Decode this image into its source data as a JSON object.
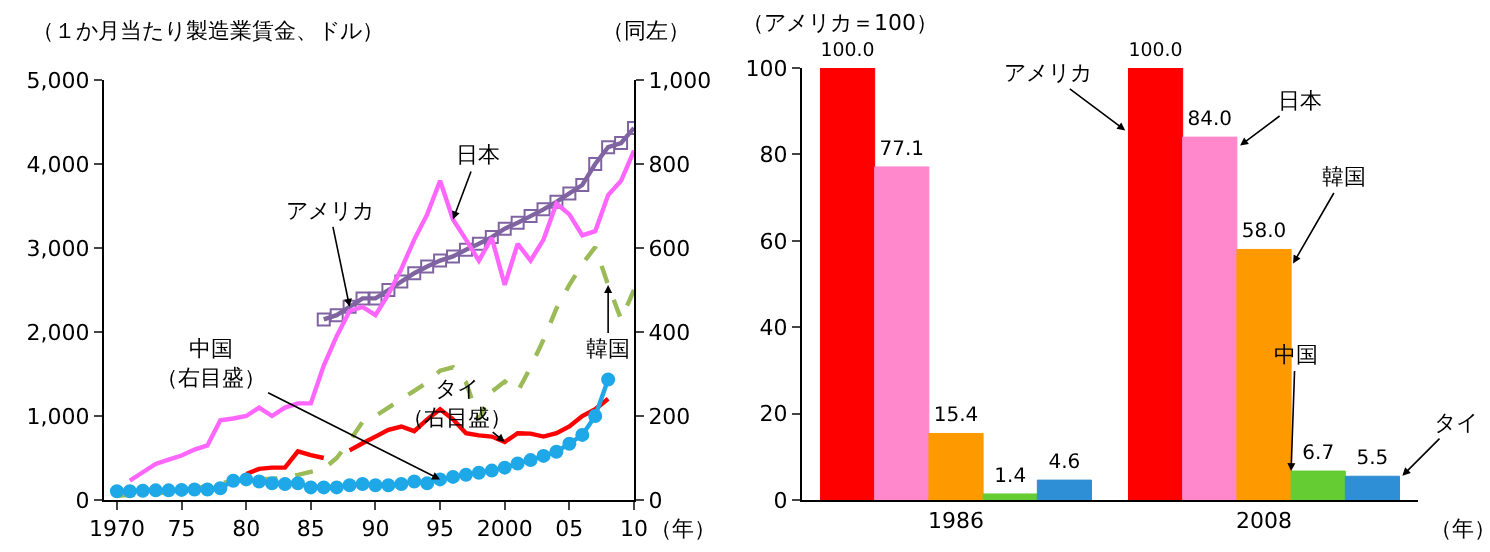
{
  "chart_data": [
    {
      "type": "line",
      "ylabel": "（１か月当たり製造業賃金、ドル）",
      "y2label": "（同左）",
      "xlabel": "（年）",
      "xlim": [
        1969,
        2010
      ],
      "xticks": [
        {
          "value": 1970,
          "label": "1970"
        },
        {
          "value": 1975,
          "label": "75"
        },
        {
          "value": 1980,
          "label": "80"
        },
        {
          "value": 1985,
          "label": "85"
        },
        {
          "value": 1990,
          "label": "90"
        },
        {
          "value": 1995,
          "label": "95"
        },
        {
          "value": 2000,
          "label": "2000"
        },
        {
          "value": 2005,
          "label": "05"
        },
        {
          "value": 2010,
          "label": "10"
        }
      ],
      "ylim": [
        0,
        5000
      ],
      "yticks": [
        0,
        {
          "value": 1000,
          "label": "1,000"
        },
        {
          "value": 2000,
          "label": "2,000"
        },
        {
          "value": 3000,
          "label": "3,000"
        },
        {
          "value": 4000,
          "label": "4,000"
        },
        {
          "value": 5000,
          "label": "5,000"
        }
      ],
      "y2lim": [
        0,
        1000
      ],
      "y2ticks": [
        0,
        200,
        400,
        600,
        800,
        {
          "value": 1000,
          "label": "1,000"
        }
      ],
      "grid": false,
      "series": [
        {
          "name": "アメリカ",
          "color": "#8064a2",
          "marker": "square",
          "line_style": "solid",
          "x": [
            1986,
            1987,
            1988,
            1989,
            1990,
            1991,
            1992,
            1993,
            1994,
            1995,
            1996,
            1997,
            1998,
            1999,
            2000,
            2001,
            2002,
            2003,
            2004,
            2005,
            2006,
            2007,
            2008,
            2009,
            2010
          ],
          "values": [
            2150,
            2200,
            2300,
            2400,
            2400,
            2500,
            2600,
            2700,
            2780,
            2850,
            2900,
            2980,
            3050,
            3130,
            3230,
            3300,
            3380,
            3460,
            3550,
            3650,
            3750,
            4000,
            4200,
            4250,
            4430
          ]
        },
        {
          "name": "日本",
          "color": "#ff66ff",
          "marker": "none",
          "line_style": "solid",
          "x": [
            1971,
            1972,
            1973,
            1974,
            1975,
            1976,
            1977,
            1978,
            1979,
            1980,
            1981,
            1982,
            1983,
            1984,
            1985,
            1986,
            1987,
            1988,
            1989,
            1990,
            1991,
            1992,
            1993,
            1994,
            1995,
            1996,
            1997,
            1998,
            1999,
            2000,
            2001,
            2002,
            2003,
            2004,
            2005,
            2006,
            2007,
            2008,
            2009,
            2010
          ],
          "values": [
            230,
            330,
            430,
            480,
            530,
            600,
            650,
            950,
            970,
            1000,
            1100,
            1000,
            1100,
            1150,
            1150,
            1600,
            1950,
            2250,
            2300,
            2200,
            2450,
            2750,
            3100,
            3400,
            3800,
            3340,
            3100,
            2850,
            3120,
            2560,
            3050,
            2850,
            3100,
            3530,
            3400,
            3150,
            3200,
            3630,
            3800,
            4160
          ]
        },
        {
          "name": "韓国",
          "color": "#9bbb59",
          "marker": "none",
          "line_style": "dashed",
          "x": [
            1970,
            1972,
            1975,
            1978,
            1980,
            1982,
            1984,
            1986,
            1987,
            1988,
            1989,
            1990,
            1991,
            1992,
            1993,
            1994,
            1995,
            1996,
            1997,
            1998,
            1999,
            2000,
            2001,
            2002,
            2003,
            2004,
            2005,
            2006,
            2007,
            2008,
            2009,
            2010
          ],
          "values": [
            50,
            70,
            100,
            200,
            250,
            250,
            300,
            370,
            500,
            700,
            930,
            1000,
            1100,
            1200,
            1300,
            1400,
            1540,
            1580,
            1400,
            960,
            1290,
            1410,
            1290,
            1580,
            1910,
            2280,
            2560,
            2810,
            3010,
            2560,
            2150,
            2500
          ]
        },
        {
          "name": "タイ（右目盛）",
          "color": "#ff0000",
          "marker": "none",
          "line_style": "solid",
          "axis": "y2",
          "x": [
            1980,
            1981,
            1982,
            1983,
            1984,
            1985,
            1986,
            1987,
            1988,
            1989,
            1990,
            1991,
            1992,
            1993,
            1994,
            1995,
            1996,
            1997,
            1998,
            1999,
            2000,
            2001,
            2002,
            2003,
            2004,
            2005,
            2006,
            2007,
            2008
          ],
          "values": [
            62,
            74,
            77,
            77,
            116,
            107,
            100,
            null,
            118,
            135,
            151,
            167,
            175,
            164,
            192,
            216,
            192,
            159,
            154,
            151,
            138,
            159,
            158,
            151,
            159,
            175,
            200,
            216,
            241
          ]
        },
        {
          "name": "中国（右目盛）",
          "color": "#1fa8e8",
          "marker": "circle",
          "line_style": "solid",
          "axis": "y2",
          "x": [
            1970,
            1971,
            1972,
            1973,
            1974,
            1975,
            1976,
            1977,
            1978,
            1979,
            1980,
            1981,
            1982,
            1983,
            1984,
            1985,
            1986,
            1987,
            1988,
            1989,
            1990,
            1991,
            1992,
            1993,
            1994,
            1995,
            1996,
            1997,
            1998,
            1999,
            2000,
            2001,
            2002,
            2003,
            2004,
            2005,
            2006,
            2007,
            2008
          ],
          "values": [
            21,
            21,
            22,
            23,
            23,
            24,
            25,
            25,
            28,
            46,
            49,
            44,
            40,
            38,
            40,
            30,
            30,
            30,
            35,
            38,
            35,
            35,
            38,
            44,
            40,
            49,
            55,
            60,
            65,
            70,
            77,
            87,
            95,
            105,
            115,
            134,
            155,
            200,
            287
          ]
        }
      ]
    },
    {
      "type": "bar",
      "ylabel": "（アメリカ＝100）",
      "xlabel": "（年）",
      "categories": [
        "1986",
        "2008"
      ],
      "ylim": [
        0,
        100
      ],
      "yticks": [
        0,
        20,
        40,
        60,
        80,
        100
      ],
      "grid": false,
      "series": [
        {
          "name": "アメリカ",
          "color": "#ff0000",
          "values": [
            100.0,
            100.0
          ],
          "value_labels": [
            "100.0",
            "100.0"
          ]
        },
        {
          "name": "日本",
          "color": "#ff88cc",
          "values": [
            77.1,
            84.0
          ],
          "value_labels": [
            "77.1",
            "84.0"
          ]
        },
        {
          "name": "韓国",
          "color": "#ff9900",
          "values": [
            15.4,
            58.0
          ],
          "value_labels": [
            "15.4",
            "58.0"
          ]
        },
        {
          "name": "中国",
          "color": "#66cc33",
          "values": [
            1.4,
            6.7
          ],
          "value_labels": [
            "1.4",
            "6.7"
          ]
        },
        {
          "name": "タイ",
          "color": "#2e8fd6",
          "values": [
            4.6,
            5.5
          ],
          "value_labels": [
            "4.6",
            "5.5"
          ]
        }
      ]
    }
  ]
}
